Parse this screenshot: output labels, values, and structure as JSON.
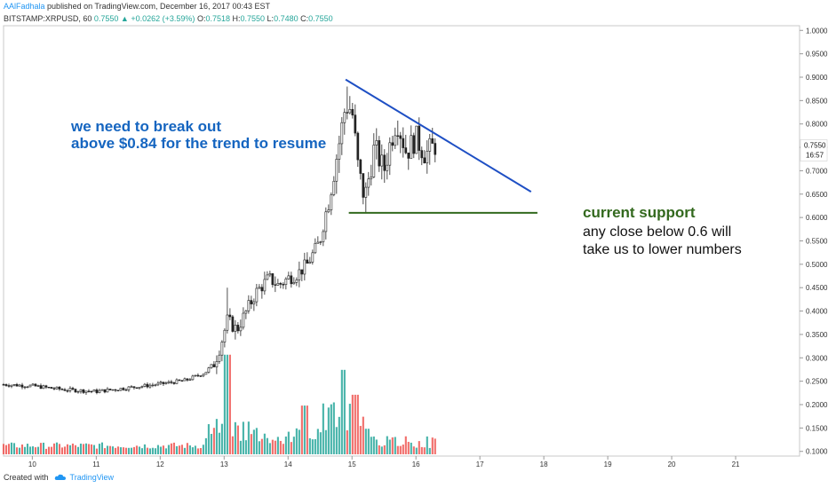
{
  "header": {
    "author": "AAlFadhala",
    "published": "published on TradingView.com, December 16, 2017 00:43 EST",
    "symbol": "BITSTAMP:XRPUSD, 60",
    "last": "0.7550",
    "change": "+0.0262 (+3.59%)",
    "o_label": "O:",
    "o": "0.7518",
    "h_label": "H:",
    "h": "0.7550",
    "l_label": "L:",
    "l": "0.7480",
    "c_label": "C:",
    "c": "0.7550"
  },
  "footer": {
    "created_with": "Created with",
    "brand": "TradingView"
  },
  "price_badge": {
    "price": "0.7550",
    "countdown": "16:57"
  },
  "annotations": {
    "breakout_line1": "we need to break out",
    "breakout_line2": "above $0.84 for the trend to resume",
    "support_title": "current support",
    "support_line1": "any close below 0.6 will",
    "support_line2": "take us to lower numbers"
  },
  "colors": {
    "up": "#26a69a",
    "down": "#ef5350",
    "candle": "#222222",
    "annotation_blue": "#1565c0",
    "support_green": "#33691e",
    "trendline": "#1e4fc4"
  },
  "chart_data": {
    "type": "candlestick",
    "symbol": "BITSTAMP:XRPUSD",
    "interval": "60",
    "x_ticks": [
      "10",
      "11",
      "12",
      "13",
      "14",
      "15",
      "16",
      "17",
      "18",
      "19",
      "20",
      "21"
    ],
    "x_tick_days": [
      10,
      11,
      12,
      13,
      14,
      15,
      16,
      17,
      18,
      19,
      20,
      21
    ],
    "y_ticks": [
      "0.1000",
      "0.1500",
      "0.2000",
      "0.2500",
      "0.3000",
      "0.3500",
      "0.4000",
      "0.4500",
      "0.5000",
      "0.5500",
      "0.6000",
      "0.6500",
      "0.7000",
      "0.7500",
      "0.8000",
      "0.8500",
      "0.9000",
      "0.9500",
      "1.0000"
    ],
    "ylim": [
      0.09,
      1.01
    ],
    "xlim": [
      9.55,
      22.0
    ],
    "price_path": [
      {
        "day": 9.55,
        "price": 0.243
      },
      {
        "day": 10.0,
        "price": 0.24
      },
      {
        "day": 10.5,
        "price": 0.232
      },
      {
        "day": 11.0,
        "price": 0.228
      },
      {
        "day": 11.5,
        "price": 0.236
      },
      {
        "day": 12.0,
        "price": 0.244
      },
      {
        "day": 12.4,
        "price": 0.252
      },
      {
        "day": 12.7,
        "price": 0.268
      },
      {
        "day": 12.85,
        "price": 0.29
      },
      {
        "day": 12.95,
        "price": 0.33
      },
      {
        "day": 13.05,
        "price": 0.38
      },
      {
        "day": 13.2,
        "price": 0.36
      },
      {
        "day": 13.35,
        "price": 0.4
      },
      {
        "day": 13.5,
        "price": 0.44
      },
      {
        "day": 13.7,
        "price": 0.47
      },
      {
        "day": 13.85,
        "price": 0.455
      },
      {
        "day": 14.0,
        "price": 0.47
      },
      {
        "day": 14.15,
        "price": 0.48
      },
      {
        "day": 14.3,
        "price": 0.5
      },
      {
        "day": 14.5,
        "price": 0.55
      },
      {
        "day": 14.65,
        "price": 0.65
      },
      {
        "day": 14.8,
        "price": 0.76
      },
      {
        "day": 14.9,
        "price": 0.84
      },
      {
        "day": 15.0,
        "price": 0.83
      },
      {
        "day": 15.1,
        "price": 0.7
      },
      {
        "day": 15.2,
        "price": 0.64
      },
      {
        "day": 15.35,
        "price": 0.75
      },
      {
        "day": 15.5,
        "price": 0.7
      },
      {
        "day": 15.6,
        "price": 0.76
      },
      {
        "day": 15.7,
        "price": 0.81
      },
      {
        "day": 15.85,
        "price": 0.74
      },
      {
        "day": 16.0,
        "price": 0.77
      },
      {
        "day": 16.15,
        "price": 0.735
      },
      {
        "day": 16.3,
        "price": 0.755
      }
    ],
    "volume_peaks": [
      {
        "day": 13.05,
        "level": 0.92
      },
      {
        "day": 14.85,
        "level": 0.78
      },
      {
        "day": 15.05,
        "level": 0.55
      },
      {
        "day": 14.25,
        "level": 0.45
      }
    ],
    "lines": [
      {
        "name": "resistance",
        "from": {
          "day": 14.9,
          "price": 0.895
        },
        "to": {
          "day": 17.8,
          "price": 0.655
        }
      },
      {
        "name": "support",
        "from": {
          "day": 14.95,
          "price": 0.61
        },
        "to": {
          "day": 17.9,
          "price": 0.61
        }
      }
    ]
  }
}
